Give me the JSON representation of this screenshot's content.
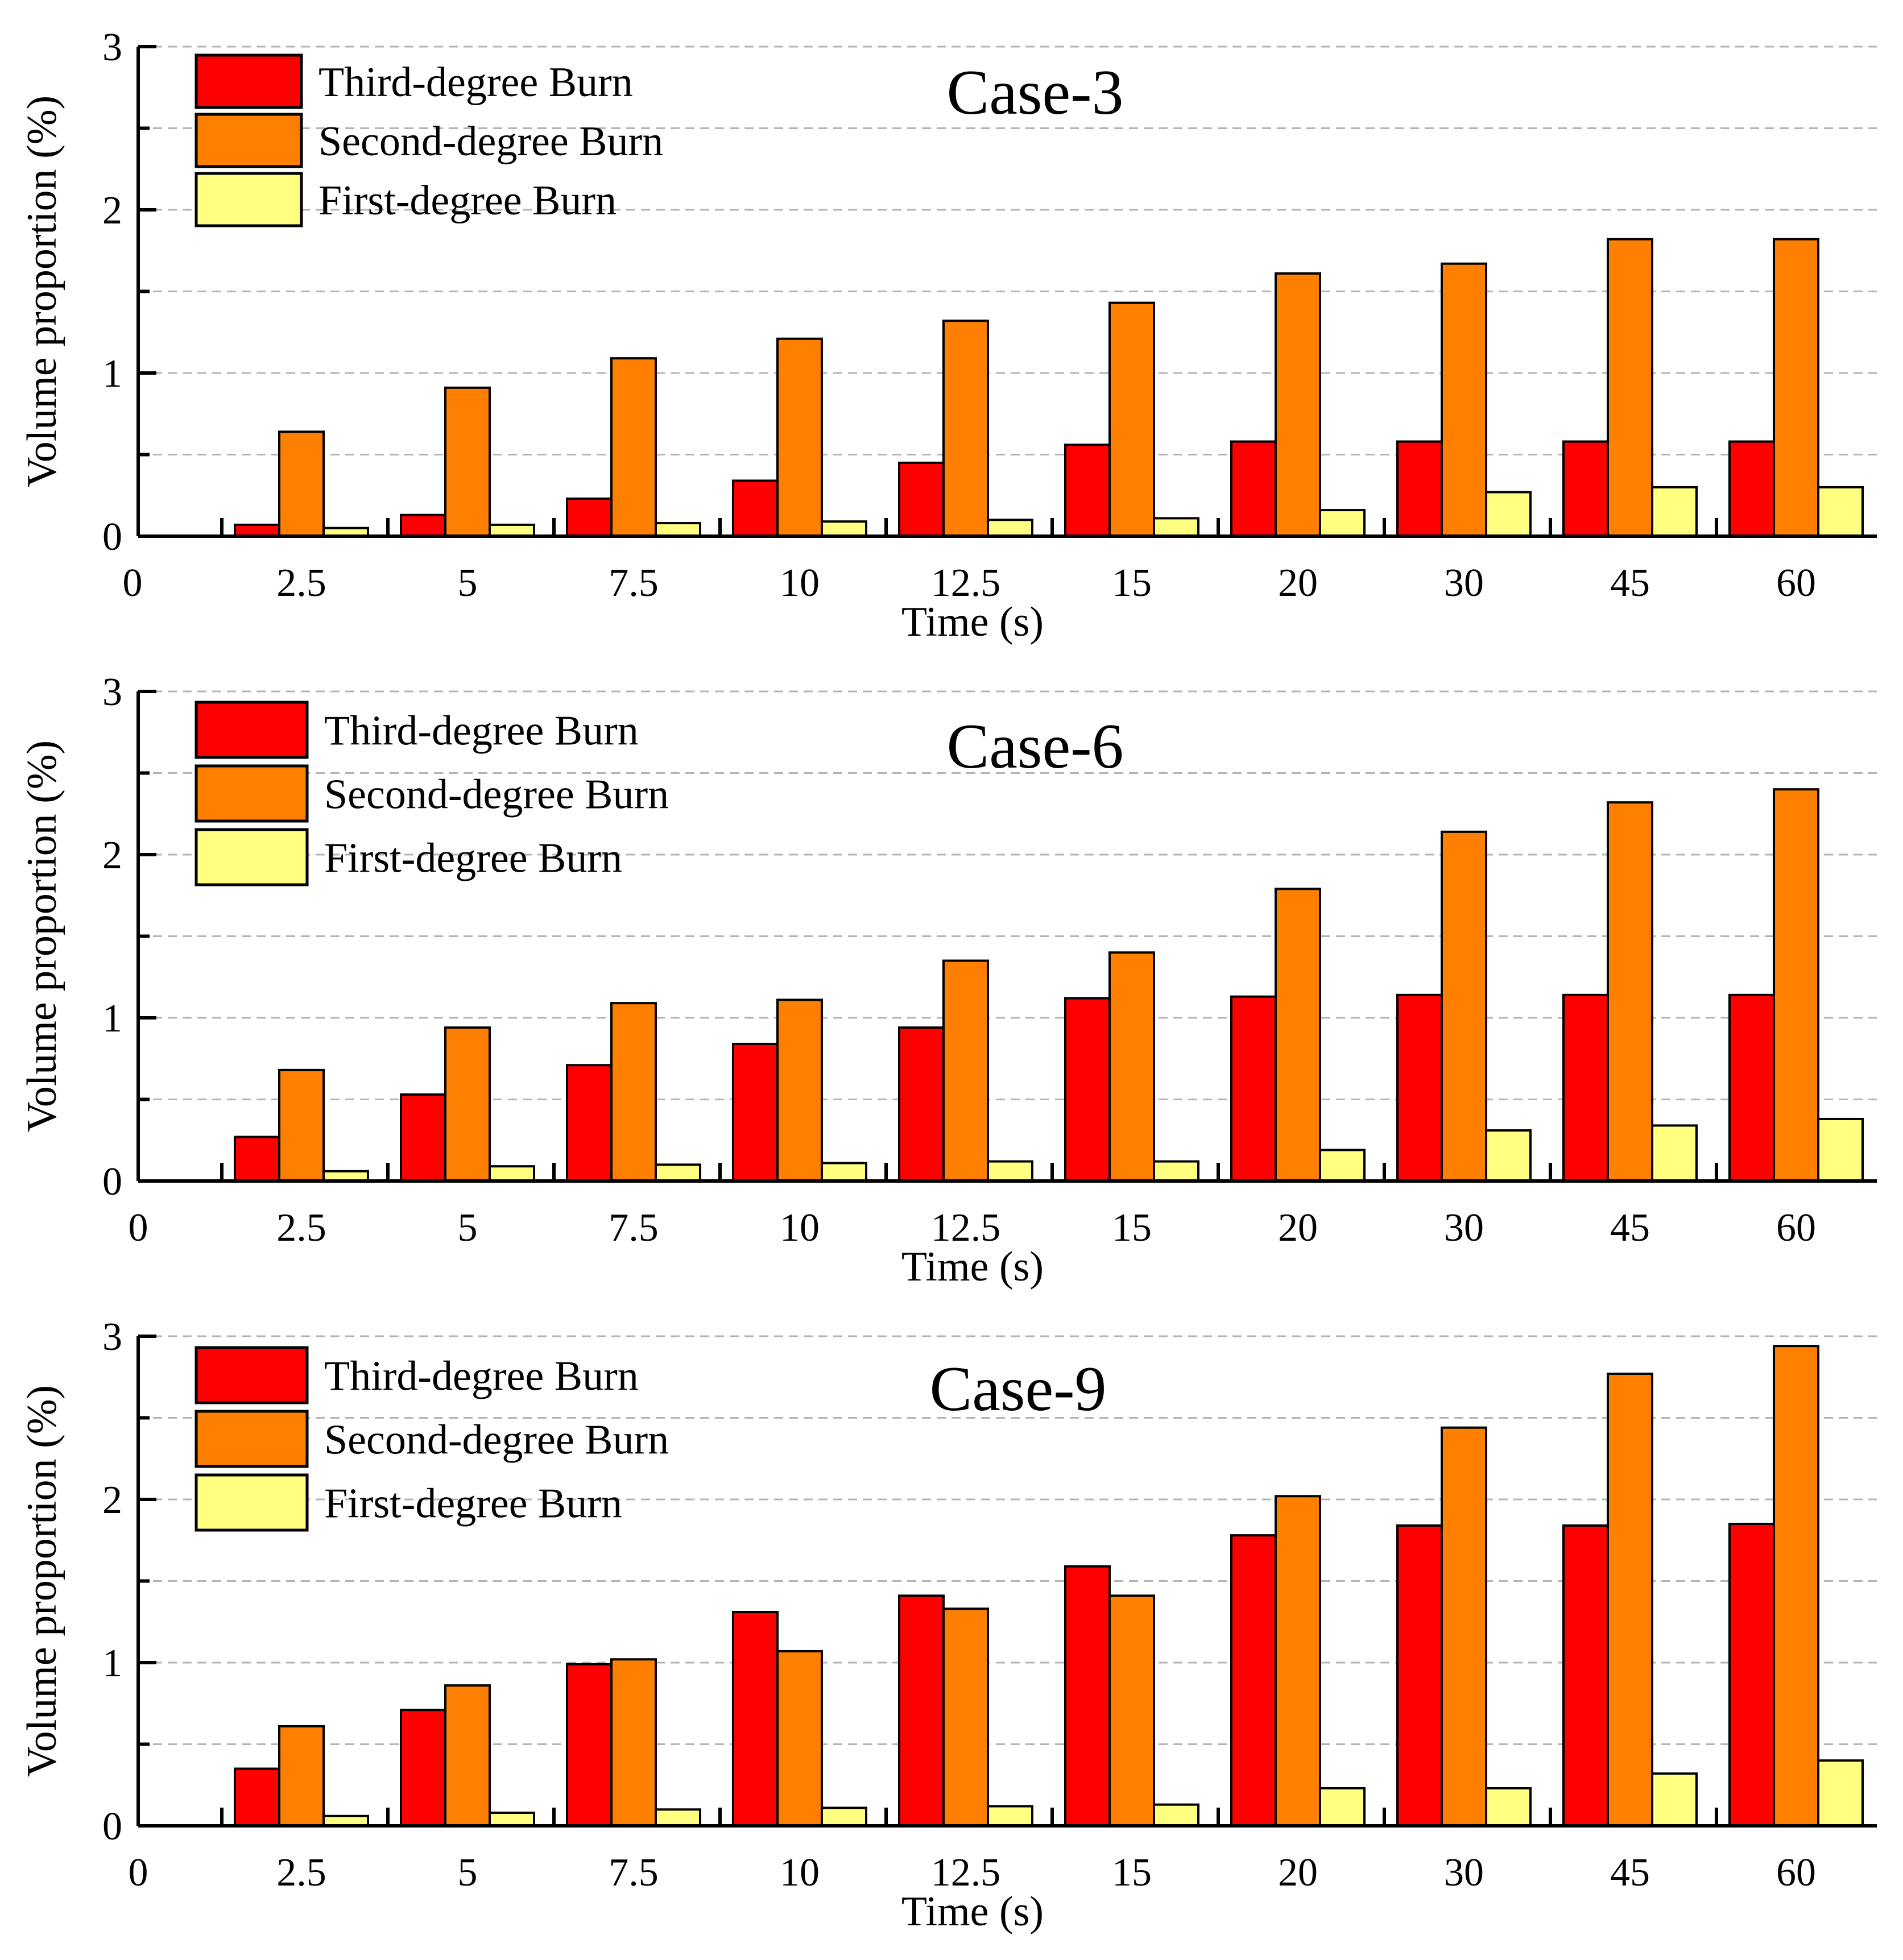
{
  "chart_data": [
    {
      "type": "bar",
      "title": "Case-3",
      "xlabel": "Time (s)",
      "ylabel": "Volume proportion (%)",
      "ylim": [
        0,
        3
      ],
      "yticks": [
        "0",
        "1",
        "2",
        "3"
      ],
      "x_origin_label": "0",
      "categories": [
        "2.5",
        "5",
        "7.5",
        "10",
        "12.5",
        "15",
        "20",
        "30",
        "45",
        "60"
      ],
      "grid": true,
      "legend_position": "top-left",
      "series": [
        {
          "name": "Third-degree Burn",
          "color": "#ff0000",
          "values": [
            0.07,
            0.13,
            0.23,
            0.34,
            0.45,
            0.56,
            0.58,
            0.58,
            0.58,
            0.58
          ]
        },
        {
          "name": "Second-degree Burn",
          "color": "#ff8000",
          "values": [
            0.64,
            0.91,
            1.09,
            1.21,
            1.32,
            1.43,
            1.61,
            1.67,
            1.82,
            1.82
          ]
        },
        {
          "name": "First-degree Burn",
          "color": "#ffff80",
          "values": [
            0.05,
            0.07,
            0.08,
            0.09,
            0.1,
            0.11,
            0.16,
            0.27,
            0.3,
            0.3
          ]
        }
      ]
    },
    {
      "type": "bar",
      "title": "Case-6",
      "xlabel": "Time (s)",
      "ylabel": "Volume proportion (%)",
      "ylim": [
        0,
        3
      ],
      "yticks": [
        "0",
        "1",
        "2",
        "3"
      ],
      "x_origin_label": "0",
      "categories": [
        "2.5",
        "5",
        "7.5",
        "10",
        "12.5",
        "15",
        "20",
        "30",
        "45",
        "60"
      ],
      "grid": true,
      "legend_position": "top-left",
      "series": [
        {
          "name": "Third-degree Burn",
          "color": "#ff0000",
          "values": [
            0.27,
            0.53,
            0.71,
            0.84,
            0.94,
            1.12,
            1.13,
            1.14,
            1.14,
            1.14
          ]
        },
        {
          "name": "Second-degree Burn",
          "color": "#ff8000",
          "values": [
            0.68,
            0.94,
            1.09,
            1.11,
            1.35,
            1.4,
            1.79,
            2.14,
            2.32,
            2.4
          ]
        },
        {
          "name": "First-degree Burn",
          "color": "#ffff80",
          "values": [
            0.06,
            0.09,
            0.1,
            0.11,
            0.12,
            0.12,
            0.19,
            0.31,
            0.34,
            0.38
          ]
        }
      ]
    },
    {
      "type": "bar",
      "title": "Case-9",
      "xlabel": "Time (s)",
      "ylabel": "Volume proportion (%)",
      "ylim": [
        0,
        3
      ],
      "yticks": [
        "0",
        "1",
        "2",
        "3"
      ],
      "x_origin_label": "0",
      "categories": [
        "2.5",
        "5",
        "7.5",
        "10",
        "12.5",
        "15",
        "20",
        "30",
        "45",
        "60"
      ],
      "grid": true,
      "legend_position": "top-left",
      "series": [
        {
          "name": "Third-degree Burn",
          "color": "#ff0000",
          "values": [
            0.35,
            0.71,
            0.99,
            1.31,
            1.41,
            1.59,
            1.78,
            1.84,
            1.84,
            1.85
          ]
        },
        {
          "name": "Second-degree Burn",
          "color": "#ff8000",
          "values": [
            0.61,
            0.86,
            1.02,
            1.07,
            1.33,
            1.41,
            2.02,
            2.44,
            2.77,
            2.94
          ]
        },
        {
          "name": "First-degree Burn",
          "color": "#ffff80",
          "values": [
            0.06,
            0.08,
            0.1,
            0.11,
            0.12,
            0.13,
            0.23,
            0.23,
            0.32,
            0.4
          ]
        }
      ]
    }
  ]
}
